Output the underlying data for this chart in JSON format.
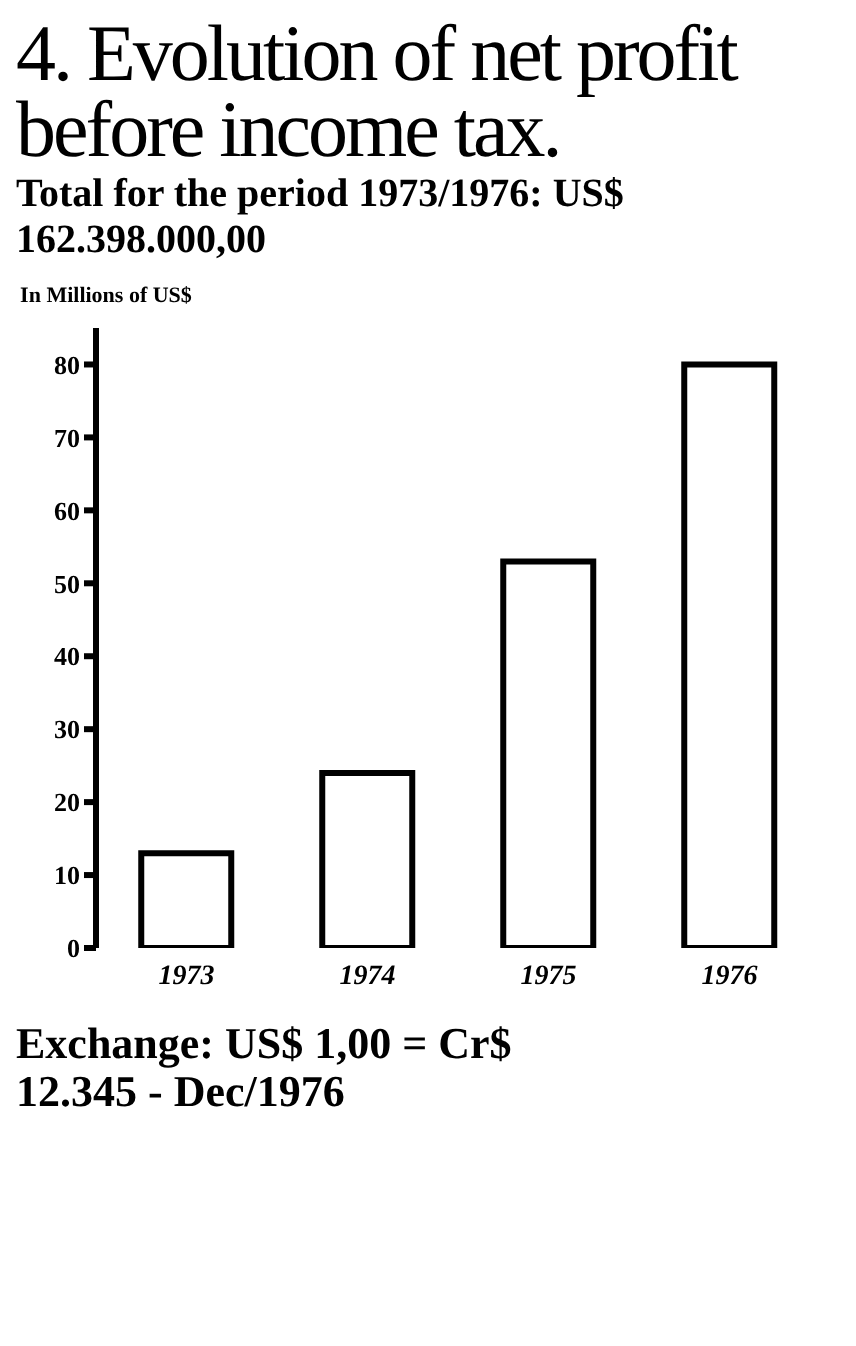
{
  "chart_data": {
    "type": "bar",
    "title": "4. Evolution of net profit before income tax.",
    "subtitle": "Total for the period 1973/1976: US$ 162.398.000,00",
    "ylabel": "In Millions of US$",
    "annotations": [
      "Exchange: US$ 1,00 = Cr$ 12.345 - Dec/1976"
    ],
    "categories": [
      "1973",
      "1974",
      "1975",
      "1976"
    ],
    "values": [
      13,
      24,
      53,
      80
    ],
    "color": "#ffffff",
    "ylim": [
      0,
      85
    ],
    "yticks": [
      0,
      10,
      20,
      30,
      40,
      50,
      60,
      70,
      80
    ],
    "grid": false,
    "legend": false
  }
}
